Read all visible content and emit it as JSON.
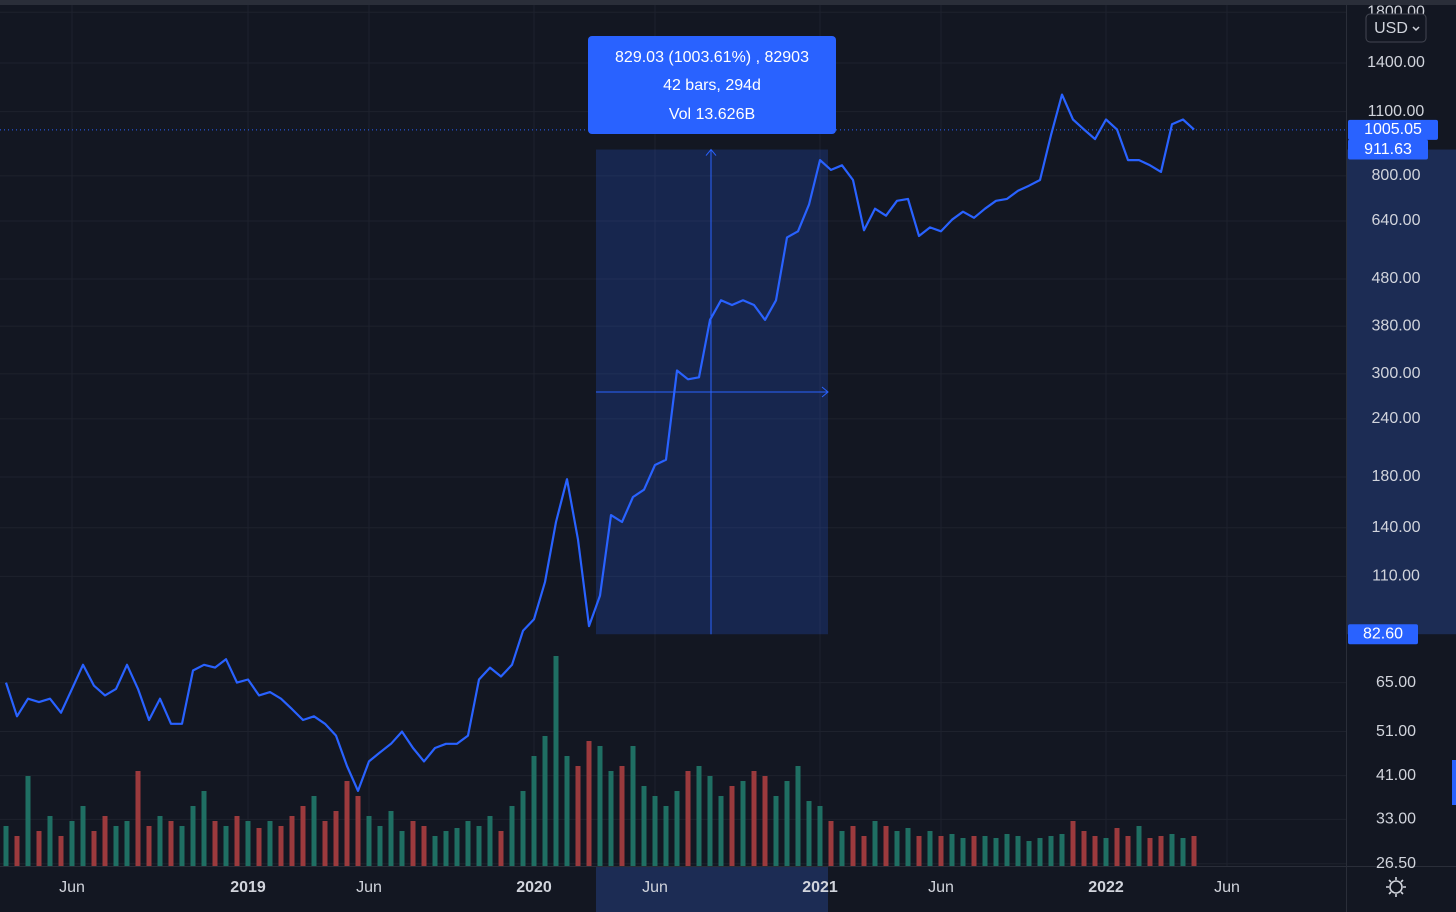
{
  "chart_data": {
    "type": "line",
    "categories": [
      null,
      null,
      null,
      null,
      null,
      null,
      "Jun",
      null,
      null,
      null,
      null,
      null,
      null,
      null,
      null,
      null,
      null,
      null,
      null,
      null,
      null,
      null,
      "2019",
      null,
      null,
      null,
      null,
      null,
      null,
      null,
      null,
      null,
      null,
      "Jun",
      null,
      null,
      null,
      null,
      null,
      null,
      null,
      null,
      null,
      null,
      null,
      null,
      null,
      null,
      "2020",
      null,
      null,
      null,
      null,
      null,
      null,
      null,
      null,
      null,
      null,
      "Jun",
      null,
      null,
      null,
      null,
      null,
      null,
      null,
      null,
      null,
      null,
      null,
      null,
      null,
      null,
      "2021",
      null,
      null,
      null,
      null,
      null,
      null,
      null,
      null,
      null,
      null,
      "Jun",
      null,
      null,
      null,
      null,
      null,
      null,
      null,
      null,
      null,
      null,
      null,
      null,
      null,
      null,
      "2022",
      null,
      null,
      null,
      null,
      null,
      null,
      null,
      null,
      null,
      null,
      "Jun"
    ],
    "series": [
      {
        "color": "#2962ff",
        "values": [
          65,
          55,
          60,
          59,
          60,
          56,
          63,
          71,
          64,
          61,
          63,
          71,
          63,
          54,
          60,
          53,
          53,
          69,
          71,
          70,
          73,
          65,
          66,
          61,
          62,
          60,
          57,
          54,
          55,
          53,
          50,
          43,
          38,
          44,
          46,
          48,
          51,
          47,
          44,
          47,
          48,
          48,
          50,
          66,
          70,
          67,
          71,
          84,
          89,
          107,
          144,
          178,
          132,
          86,
          100,
          149,
          144,
          163,
          169,
          191,
          196,
          305,
          292,
          295,
          392,
          432,
          422,
          432,
          422,
          392,
          432,
          590,
          608,
          694,
          865,
          824,
          843,
          784,
          611,
          680,
          657,
          707,
          714,
          594,
          620,
          608,
          644,
          670,
          650,
          680,
          707,
          714,
          743,
          762,
          784,
          979,
          1197,
          1058,
          1007,
          960,
          1058,
          1007,
          865,
          865,
          843,
          816,
          1033,
          1058,
          1007,
          null,
          null,
          null
        ]
      }
    ],
    "volume": {
      "up_color": "#1f6f63",
      "down_color": "#9b3a3d",
      "vlim": [
        0,
        230
      ],
      "values": [
        40,
        30,
        90,
        35,
        50,
        30,
        45,
        60,
        35,
        50,
        40,
        45,
        95,
        40,
        50,
        45,
        40,
        60,
        75,
        45,
        40,
        50,
        45,
        38,
        45,
        40,
        50,
        60,
        70,
        45,
        55,
        85,
        70,
        50,
        40,
        55,
        35,
        45,
        40,
        30,
        35,
        38,
        45,
        40,
        50,
        35,
        60,
        75,
        110,
        130,
        210,
        110,
        100,
        125,
        120,
        95,
        100,
        120,
        80,
        70,
        60,
        75,
        95,
        100,
        90,
        70,
        80,
        85,
        95,
        90,
        70,
        85,
        100,
        65,
        60,
        45,
        35,
        40,
        30,
        45,
        40,
        35,
        38,
        30,
        35,
        30,
        32,
        28,
        30,
        30,
        28,
        32,
        30,
        25,
        28,
        30,
        32,
        45,
        35,
        30,
        28,
        38,
        30,
        40,
        28,
        30,
        32,
        28,
        30,
        null,
        null,
        null
      ]
    },
    "log_scale": true,
    "ylim": [
      26.2,
      1838
    ],
    "yticks": [
      {
        "value": 1800,
        "label": "1800.00"
      },
      {
        "value": 1400,
        "label": "1400.00"
      },
      {
        "value": 1100,
        "label": "1100.00"
      },
      {
        "value": 800,
        "label": "800.00"
      },
      {
        "value": 640,
        "label": "640.00"
      },
      {
        "value": 480,
        "label": "480.00"
      },
      {
        "value": 380,
        "label": "380.00"
      },
      {
        "value": 300,
        "label": "300.00"
      },
      {
        "value": 240,
        "label": "240.00"
      },
      {
        "value": 180,
        "label": "180.00"
      },
      {
        "value": 140,
        "label": "140.00"
      },
      {
        "value": 110,
        "label": "110.00"
      },
      {
        "value": 65,
        "label": "65.00"
      },
      {
        "value": 51,
        "label": "51.00"
      },
      {
        "value": 41,
        "label": "41.00"
      },
      {
        "value": 33,
        "label": "33.00"
      },
      {
        "value": 26.5,
        "label": "26.50"
      }
    ],
    "price_markers": [
      1005.05,
      911.63,
      {
        "value": 82.6,
        "label": "82.60"
      }
    ],
    "currency": "USD",
    "measure": [
      "829.03 (1003.61%) , 82903",
      "42 bars, 294d",
      "Vol 13.626B"
    ],
    "grid": true
  }
}
